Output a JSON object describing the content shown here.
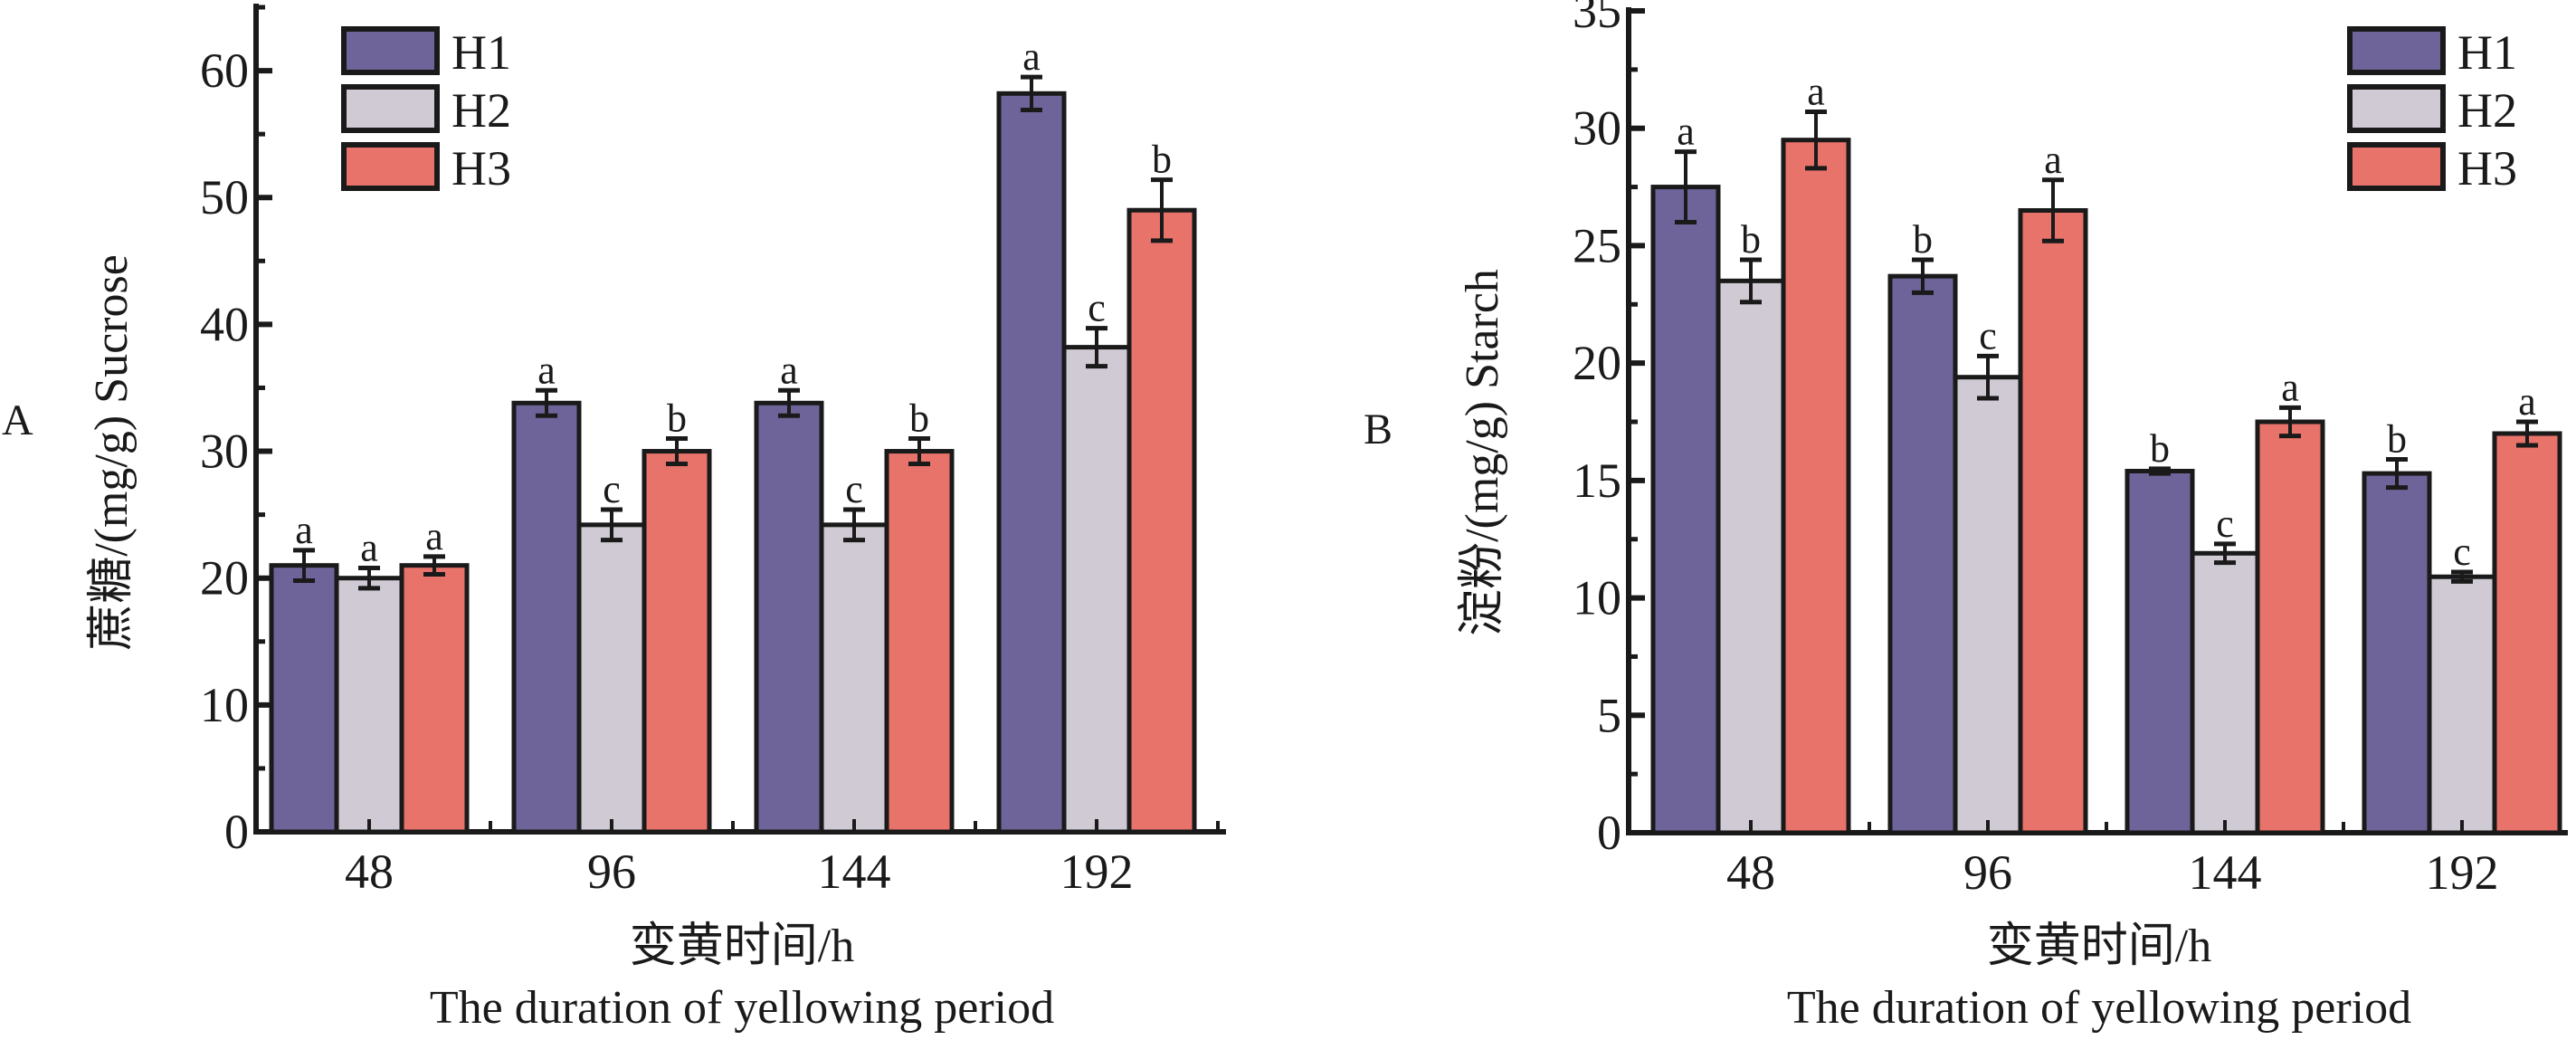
{
  "chart_data": [
    {
      "type": "bar",
      "panel_label": "A",
      "title": "",
      "categories": [
        "48",
        "96",
        "144",
        "192"
      ],
      "xlabel_cn": "变黄时间/h",
      "xlabel_en": "The duration of yellowing period",
      "ylabel": "蔗糖/(mg/g)  Sucrose",
      "ylim": [
        0,
        65
      ],
      "yticks": [
        0,
        10,
        20,
        30,
        40,
        50,
        60
      ],
      "ytick_labels": [
        "0",
        "10",
        "20",
        "30",
        "40",
        "50",
        "60"
      ],
      "minor_ytick_step": 5,
      "legend": [
        "H1",
        "H2",
        "H3"
      ],
      "legend_position": "top-left",
      "series": [
        {
          "name": "H1",
          "color": "#6f6499",
          "values": [
            21.0,
            33.8,
            33.8,
            58.2
          ],
          "errors": [
            1.2,
            1.0,
            1.0,
            1.3
          ],
          "letters": [
            "a",
            "a",
            "a",
            "a"
          ]
        },
        {
          "name": "H2",
          "color": "#cfcad3",
          "values": [
            20.0,
            24.2,
            24.2,
            38.2
          ],
          "errors": [
            0.8,
            1.2,
            1.2,
            1.5
          ],
          "letters": [
            "a",
            "c",
            "c",
            "c"
          ]
        },
        {
          "name": "H3",
          "color": "#e8736b",
          "values": [
            21.0,
            30.0,
            30.0,
            49.0
          ],
          "errors": [
            0.7,
            1.0,
            1.0,
            2.4
          ],
          "letters": [
            "a",
            "b",
            "b",
            "b"
          ]
        }
      ]
    },
    {
      "type": "bar",
      "panel_label": "B",
      "title": "",
      "categories": [
        "48",
        "96",
        "144",
        "192"
      ],
      "xlabel_cn": "变黄时间/h",
      "xlabel_en": "The duration of yellowing period",
      "ylabel": "淀粉/(mg/g)  Starch",
      "ylim": [
        0,
        35
      ],
      "yticks": [
        0,
        5,
        10,
        15,
        20,
        25,
        30,
        35
      ],
      "ytick_labels": [
        "0",
        "5",
        "10",
        "15",
        "20",
        "25",
        "30",
        "35"
      ],
      "minor_ytick_step": 2.5,
      "legend": [
        "H1",
        "H2",
        "H3"
      ],
      "legend_position": "top-right",
      "series": [
        {
          "name": "H1",
          "color": "#6f6499",
          "values": [
            27.5,
            23.7,
            15.4,
            15.3
          ],
          "errors": [
            1.5,
            0.7,
            0.1,
            0.6
          ],
          "letters": [
            "a",
            "b",
            "b",
            "b"
          ]
        },
        {
          "name": "H2",
          "color": "#cfcad3",
          "values": [
            23.5,
            19.4,
            11.9,
            10.9
          ],
          "errors": [
            0.9,
            0.9,
            0.4,
            0.2
          ],
          "letters": [
            "b",
            "c",
            "c",
            "c"
          ]
        },
        {
          "name": "H3",
          "color": "#e8736b",
          "values": [
            29.5,
            26.5,
            17.5,
            17.0
          ],
          "errors": [
            1.2,
            1.3,
            0.6,
            0.5
          ],
          "letters": [
            "a",
            "a",
            "a",
            "a"
          ]
        }
      ]
    }
  ]
}
